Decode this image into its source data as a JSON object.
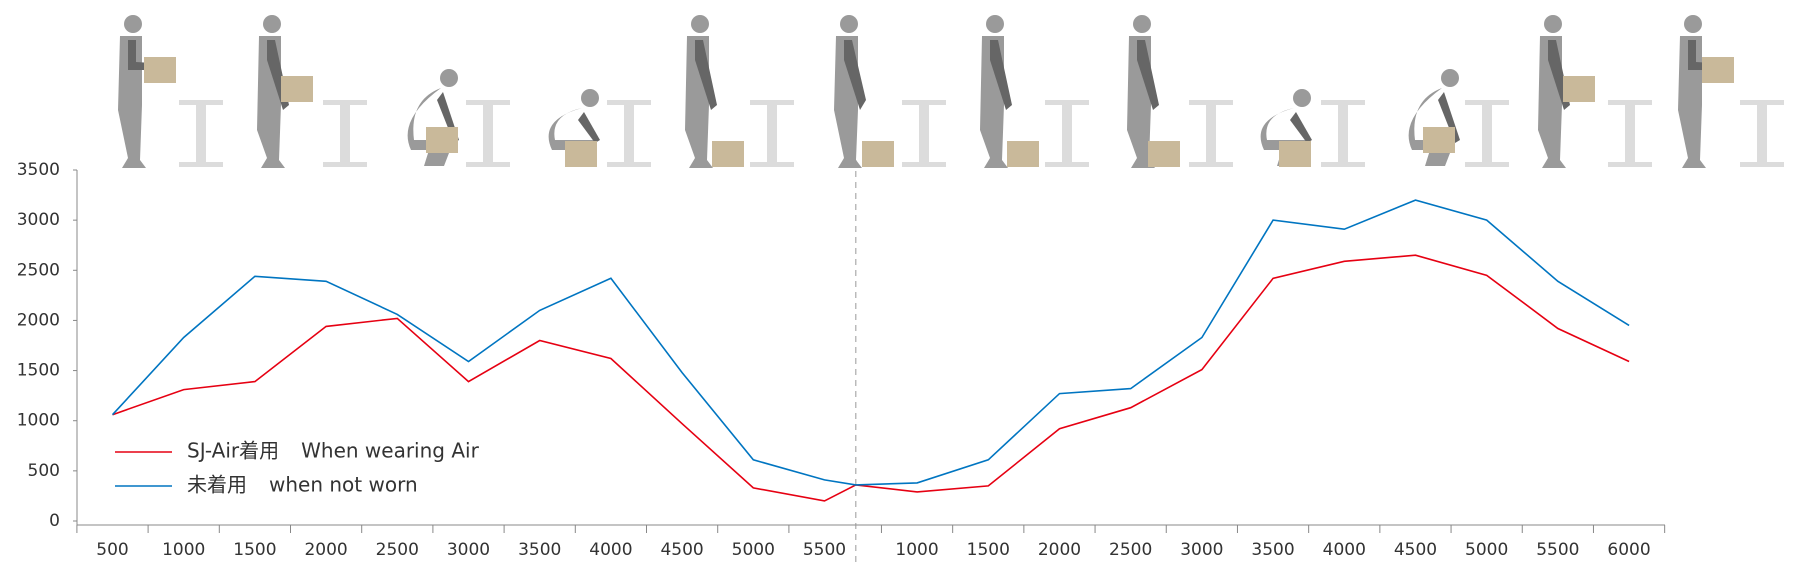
{
  "chart_data": {
    "type": "line",
    "categories": [
      "500",
      "1000",
      "1500",
      "2000",
      "2500",
      "3000",
      "3500",
      "4000",
      "4500",
      "5000",
      "5500",
      null,
      "1000",
      "1500",
      "2000",
      "2500",
      "3000",
      "3500",
      "4000",
      "4500",
      "5000",
      "5500",
      "6000"
    ],
    "series": [
      {
        "name": "SJ-Air着用",
        "name_en": "When wearing Air",
        "color": "#e60012",
        "values": [
          1060,
          1310,
          1390,
          1940,
          2020,
          1390,
          1800,
          1620,
          970,
          330,
          200,
          360,
          290,
          350,
          920,
          1130,
          1510,
          2420,
          2590,
          2650,
          2450,
          1920,
          1590
        ]
      },
      {
        "name": "未着用",
        "name_en": "when not worn",
        "color": "#0075c1",
        "values": [
          1060,
          1830,
          2440,
          2390,
          2060,
          1590,
          2100,
          2420,
          1480,
          610,
          410,
          360,
          380,
          610,
          1270,
          1320,
          1830,
          3000,
          2910,
          3200,
          3000,
          2390,
          1950
        ]
      }
    ],
    "ylim": [
      0,
      3500
    ],
    "yticks": [
      0,
      500,
      1000,
      1500,
      2000,
      2500,
      3000,
      3500
    ],
    "name_en_color": "#0075c1"
  }
}
